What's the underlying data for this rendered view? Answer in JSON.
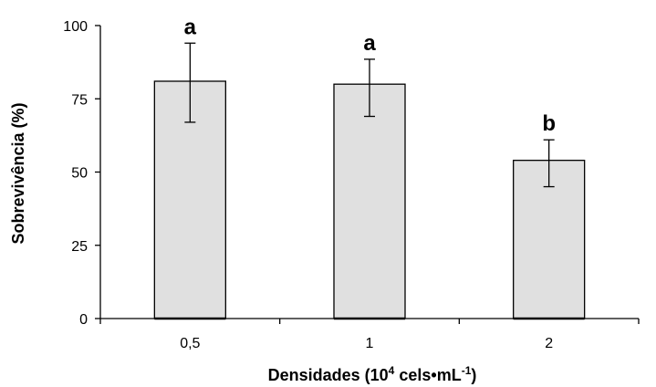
{
  "chart_data": {
    "type": "bar",
    "categories": [
      "0,5",
      "1",
      "2"
    ],
    "values": [
      81,
      80,
      54
    ],
    "error_upper": [
      94,
      88.5,
      61
    ],
    "error_lower": [
      67,
      69,
      45
    ],
    "significance_labels": [
      "a",
      "a",
      "b"
    ],
    "ylim": [
      0,
      100
    ],
    "yticks": [
      0,
      25,
      50,
      75,
      100
    ],
    "ytick_labels": [
      "0",
      "25",
      "50",
      "75",
      "100"
    ],
    "ylabel": "Sobrevivência (%)",
    "xlabel": {
      "prefix": "Densidades (10",
      "sup1": "4",
      "middle": " cels•mL",
      "sup2": "-1",
      "suffix": ")"
    },
    "grid": false,
    "legend": "none",
    "colors": {
      "bar_fill": "#e0e0e0",
      "bar_stroke": "#000000",
      "axis": "#000000"
    }
  }
}
